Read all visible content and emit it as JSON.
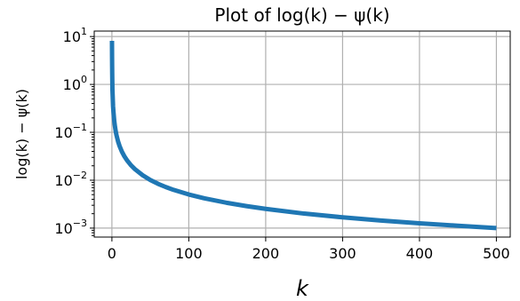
{
  "chart_data": {
    "type": "line",
    "title": "Plot of log(k) − ψ(k)",
    "xlabel": "k",
    "ylabel": "log(k) − ψ(k)",
    "xlim": [
      -23,
      518
    ],
    "ylim": [
      0.00065,
      13
    ],
    "yscale": "log",
    "grid": true,
    "x_ticks": [
      {
        "value": 0,
        "label": "0"
      },
      {
        "value": 100,
        "label": "100"
      },
      {
        "value": 200,
        "label": "200"
      },
      {
        "value": 300,
        "label": "300"
      },
      {
        "value": 400,
        "label": "400"
      },
      {
        "value": 500,
        "label": "500"
      }
    ],
    "y_ticks": [
      {
        "value": 10,
        "base": "10",
        "exp": "1"
      },
      {
        "value": 1,
        "base": "10",
        "exp": "0"
      },
      {
        "value": 0.1,
        "base": "10",
        "exp": "−1"
      },
      {
        "value": 0.01,
        "base": "10",
        "exp": "−2"
      },
      {
        "value": 0.001,
        "base": "10",
        "exp": "−3"
      }
    ],
    "series": [
      {
        "color": "#1f77b4",
        "x": [
          0.1,
          0.15,
          0.2,
          0.3,
          0.4,
          0.5,
          0.7,
          1,
          1.5,
          2,
          3,
          4,
          5,
          6,
          8,
          10,
          13,
          16,
          20,
          25,
          30,
          40,
          50,
          60,
          70,
          80,
          100,
          120,
          150,
          175,
          200,
          250,
          300,
          350,
          400,
          450,
          500
        ],
        "y": [
          8.12,
          5.28,
          3.86,
          2.43,
          1.72,
          1.27,
          0.77,
          0.577,
          0.349,
          0.27,
          0.176,
          0.131,
          0.104,
          0.0864,
          0.0645,
          0.0515,
          0.0395,
          0.032,
          0.0256,
          0.0204,
          0.017,
          0.0127,
          0.0101,
          0.00841,
          0.00721,
          0.0063,
          0.00504,
          0.0042,
          0.00336,
          0.00288,
          0.00252,
          0.00201,
          0.00168,
          0.00144,
          0.00126,
          0.00112,
          0.001
        ]
      }
    ]
  }
}
